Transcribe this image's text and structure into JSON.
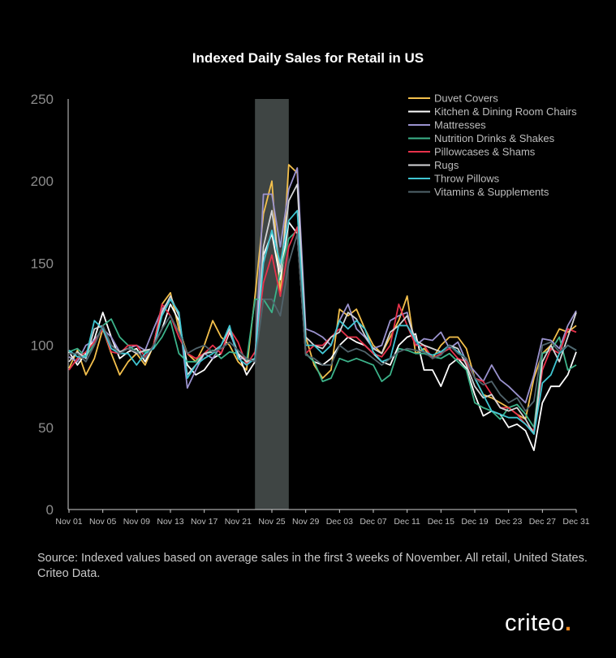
{
  "chart_data": {
    "type": "line",
    "title": "Indexed Daily Sales for Retail in US",
    "xlabel": "",
    "ylabel": "",
    "ylim": [
      0,
      250
    ],
    "yticks": [
      0,
      50,
      100,
      150,
      200,
      250
    ],
    "x_tick_labels": [
      "Nov 01",
      "Nov 05",
      "Nov 09",
      "Nov 13",
      "Nov 17",
      "Nov 21",
      "Nov 25",
      "Nov 29",
      "Dec 03",
      "Dec 07",
      "Dec 11",
      "Dec 15",
      "Dec 19",
      "Dec 23",
      "Dec 27",
      "Dec 31"
    ],
    "highlight_band": {
      "from_day": 23,
      "to_day": 27,
      "color": "#3f4544"
    },
    "legend_position": "top-right",
    "series": [
      {
        "name": "Duvet Covers",
        "color": "#f4c04c",
        "values": [
          86,
          97,
          82,
          92,
          110,
          95,
          82,
          90,
          95,
          88,
          100,
          125,
          132,
          110,
          95,
          90,
          100,
          115,
          105,
          100,
          90,
          85,
          130,
          180,
          200,
          130,
          210,
          205,
          105,
          88,
          80,
          85,
          122,
          118,
          122,
          110,
          100,
          95,
          105,
          115,
          130,
          95,
          98,
          92,
          100,
          105,
          105,
          98,
          80,
          70,
          68,
          65,
          62,
          58,
          55,
          80,
          95,
          100,
          110,
          108,
          112
        ]
      },
      {
        "name": "Kitchen & Dining Room Chairs",
        "color": "#ffffff",
        "values": [
          96,
          88,
          95,
          104,
          120,
          105,
          92,
          96,
          98,
          90,
          100,
          110,
          125,
          115,
          88,
          82,
          85,
          92,
          95,
          108,
          95,
          82,
          90,
          155,
          168,
          140,
          175,
          168,
          95,
          90,
          88,
          92,
          100,
          105,
          102,
          100,
          95,
          90,
          88,
          100,
          105,
          107,
          85,
          85,
          75,
          88,
          92,
          86,
          70,
          57,
          60,
          58,
          50,
          52,
          48,
          36,
          65,
          75,
          75,
          82,
          96
        ]
      },
      {
        "name": "Mattresses",
        "color": "#9b93cf",
        "values": [
          93,
          90,
          100,
          103,
          110,
          105,
          96,
          98,
          100,
          97,
          110,
          122,
          128,
          120,
          74,
          85,
          95,
          92,
          100,
          110,
          92,
          92,
          90,
          192,
          192,
          160,
          195,
          208,
          110,
          108,
          105,
          100,
          115,
          125,
          110,
          105,
          98,
          100,
          115,
          118,
          120,
          100,
          104,
          103,
          108,
          98,
          102,
          90,
          84,
          78,
          88,
          79,
          75,
          70,
          65,
          82,
          104,
          103,
          98,
          112,
          121
        ]
      },
      {
        "name": "Nutrition Drinks & Shakes",
        "color": "#3cb38a",
        "values": [
          96,
          98,
          93,
          101,
          112,
          116,
          105,
          100,
          96,
          96,
          98,
          105,
          115,
          95,
          90,
          90,
          95,
          97,
          92,
          96,
          95,
          90,
          128,
          128,
          120,
          145,
          165,
          170,
          95,
          90,
          78,
          80,
          92,
          90,
          92,
          90,
          88,
          78,
          82,
          98,
          97,
          95,
          95,
          93,
          92,
          95,
          90,
          85,
          65,
          62,
          60,
          55,
          62,
          64,
          58,
          50,
          95,
          97,
          105,
          85,
          88
        ]
      },
      {
        "name": "Pillowcases & Shams",
        "color": "#e8324b",
        "values": [
          85,
          92,
          96,
          102,
          110,
          96,
          95,
          100,
          100,
          93,
          100,
          125,
          118,
          105,
          95,
          92,
          95,
          100,
          95,
          110,
          102,
          88,
          96,
          138,
          155,
          130,
          160,
          172,
          95,
          100,
          100,
          105,
          110,
          105,
          105,
          100,
          95,
          93,
          100,
          125,
          112,
          100,
          100,
          92,
          95,
          98,
          92,
          90,
          80,
          78,
          70,
          62,
          62,
          58,
          52,
          48,
          85,
          98,
          95,
          110,
          108
        ]
      },
      {
        "name": "Rugs",
        "color": "#d5d5d7",
        "values": [
          90,
          96,
          92,
          110,
          112,
          100,
          96,
          98,
          95,
          97,
          98,
          120,
          130,
          118,
          82,
          88,
          95,
          96,
          100,
          110,
          95,
          90,
          92,
          160,
          182,
          145,
          188,
          198,
          105,
          100,
          98,
          105,
          108,
          120,
          116,
          106,
          98,
          95,
          108,
          112,
          118,
          103,
          100,
          98,
          96,
          100,
          98,
          88,
          75,
          68,
          70,
          62,
          60,
          62,
          55,
          46,
          90,
          100,
          90,
          105,
          120
        ]
      },
      {
        "name": "Throw Pillows",
        "color": "#40c6d2",
        "values": [
          97,
          93,
          93,
          115,
          110,
          98,
          95,
          95,
          88,
          95,
          98,
          118,
          128,
          120,
          80,
          88,
          92,
          95,
          100,
          112,
          92,
          88,
          92,
          150,
          170,
          150,
          176,
          182,
          100,
          100,
          95,
          100,
          115,
          110,
          115,
          110,
          96,
          90,
          92,
          112,
          112,
          103,
          96,
          94,
          96,
          100,
          96,
          92,
          80,
          70,
          60,
          58,
          56,
          56,
          52,
          46,
          77,
          82,
          95,
          100,
          97
        ]
      },
      {
        "name": "Vitamins & Supplements",
        "color": "#51646c",
        "values": [
          95,
          95,
          90,
          100,
          112,
          100,
          95,
          98,
          96,
          92,
          100,
          110,
          118,
          108,
          95,
          98,
          100,
          96,
          98,
          102,
          97,
          92,
          90,
          128,
          128,
          118,
          150,
          168,
          94,
          92,
          88,
          88,
          100,
          96,
          98,
          96,
          92,
          88,
          92,
          96,
          98,
          97,
          96,
          92,
          94,
          100,
          95,
          92,
          80,
          76,
          78,
          70,
          65,
          68,
          60,
          66,
          100,
          102,
          96,
          100,
          97
        ]
      }
    ]
  },
  "source_note": "Source: Indexed values based on average sales in the first 3 weeks of November. All retail, United States. Criteo Data.",
  "logo": {
    "wordmark": "criteo",
    "accent_char": "."
  }
}
